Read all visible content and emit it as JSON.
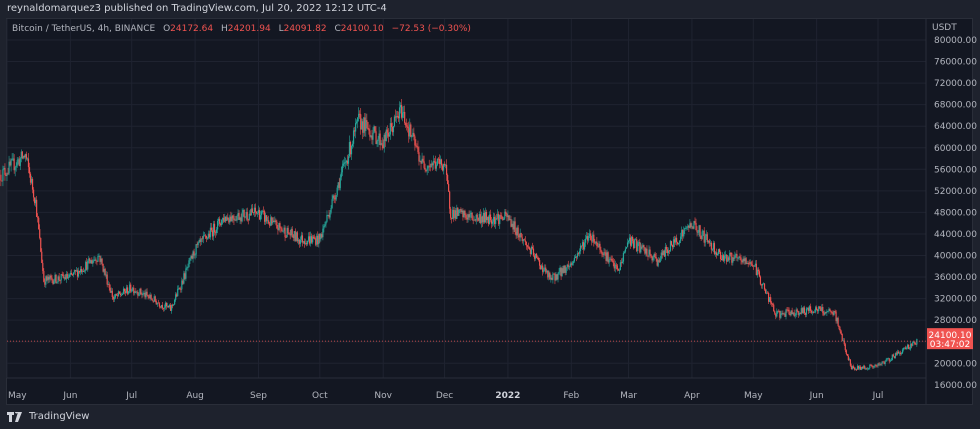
{
  "header": {
    "published": "reynaldomarquez3 published on TradingView.com, Jul 20, 2022 12:12 UTC-4"
  },
  "legend": {
    "symbol": "Bitcoin / TetherUS, 4h, BINANCE",
    "o_label": "O",
    "open": "24172.64",
    "h_label": "H",
    "high": "24201.94",
    "l_label": "L",
    "low": "24091.82",
    "c_label": "C",
    "close": "24100.10",
    "change": "−72.53 (−0.30%)"
  },
  "footer": {
    "brand": "TradingView"
  },
  "colors": {
    "up": "#26a69a",
    "down": "#ef5350",
    "background": "#131722",
    "grid": "#1f2330",
    "last_price": "#f05350"
  },
  "chart_data": {
    "type": "candlestick",
    "symbol": "BTCUSDT",
    "interval": "4h",
    "exchange": "BINANCE",
    "y_unit": "USDT",
    "ylim": [
      16000,
      80000
    ],
    "y_ticks": [
      "80000.00",
      "76000.00",
      "72000.00",
      "68000.00",
      "64000.00",
      "60000.00",
      "56000.00",
      "52000.00",
      "48000.00",
      "44000.00",
      "40000.00",
      "36000.00",
      "32000.00",
      "28000.00",
      "24000.00",
      "20000.00",
      "16000.00"
    ],
    "x_ticks": [
      {
        "label": "May",
        "date": "2021-05-01"
      },
      {
        "label": "Jun",
        "date": "2021-06-01"
      },
      {
        "label": "Jul",
        "date": "2021-07-01"
      },
      {
        "label": "Aug",
        "date": "2021-08-01"
      },
      {
        "label": "Sep",
        "date": "2021-09-01"
      },
      {
        "label": "Oct",
        "date": "2021-10-01"
      },
      {
        "label": "Nov",
        "date": "2021-11-01"
      },
      {
        "label": "Dec",
        "date": "2021-12-01"
      },
      {
        "label": "2022",
        "date": "2022-01-01"
      },
      {
        "label": "Feb",
        "date": "2022-02-01"
      },
      {
        "label": "Mar",
        "date": "2022-03-01"
      },
      {
        "label": "Apr",
        "date": "2022-04-01"
      },
      {
        "label": "May",
        "date": "2022-05-01"
      },
      {
        "label": "Jun",
        "date": "2022-06-01"
      },
      {
        "label": "Jul",
        "date": "2022-07-01"
      }
    ],
    "approx_closes": [
      [
        "2021-04-28",
        55000
      ],
      [
        "2021-05-10",
        58600
      ],
      [
        "2021-05-15",
        50000
      ],
      [
        "2021-05-19",
        35400
      ],
      [
        "2021-06-01",
        36000
      ],
      [
        "2021-06-15",
        40000
      ],
      [
        "2021-06-22",
        32000
      ],
      [
        "2021-07-01",
        34000
      ],
      [
        "2021-07-20",
        30000
      ],
      [
        "2021-08-01",
        41000
      ],
      [
        "2021-08-15",
        47000
      ],
      [
        "2021-09-01",
        48000
      ],
      [
        "2021-09-07",
        46000
      ],
      [
        "2021-09-21",
        43000
      ],
      [
        "2021-10-01",
        43000
      ],
      [
        "2021-10-15",
        59000
      ],
      [
        "2021-10-20",
        65000
      ],
      [
        "2021-11-01",
        61000
      ],
      [
        "2021-11-10",
        67000
      ],
      [
        "2021-11-20",
        57000
      ],
      [
        "2021-12-01",
        57000
      ],
      [
        "2021-12-04",
        48000
      ],
      [
        "2021-12-15",
        47000
      ],
      [
        "2022-01-01",
        47000
      ],
      [
        "2022-01-10",
        42000
      ],
      [
        "2022-01-22",
        35500
      ],
      [
        "2022-02-01",
        38500
      ],
      [
        "2022-02-10",
        44000
      ],
      [
        "2022-02-24",
        37000
      ],
      [
        "2022-03-01",
        43000
      ],
      [
        "2022-03-15",
        39000
      ],
      [
        "2022-04-01",
        46000
      ],
      [
        "2022-04-15",
        40000
      ],
      [
        "2022-05-01",
        38500
      ],
      [
        "2022-05-12",
        29000
      ],
      [
        "2022-06-01",
        30000
      ],
      [
        "2022-06-10",
        29000
      ],
      [
        "2022-06-18",
        19000
      ],
      [
        "2022-07-01",
        19500
      ],
      [
        "2022-07-20",
        24100
      ]
    ],
    "last_price": {
      "value": "24100.10",
      "countdown": "03:47:02"
    },
    "grid": true
  }
}
